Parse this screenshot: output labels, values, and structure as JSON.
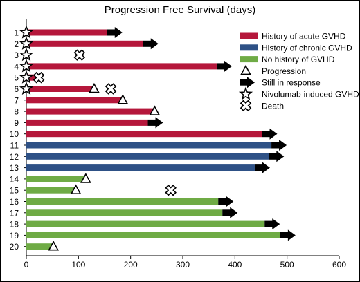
{
  "chart_data": {
    "type": "bar",
    "title": "Progression Free Survival (days)",
    "xlabel": "",
    "ylabel": "",
    "xlim": [
      0,
      600
    ],
    "x_ticks": [
      0,
      100,
      200,
      300,
      400,
      500,
      600
    ],
    "categories": [
      "1",
      "2",
      "3",
      "4",
      "5",
      "6",
      "7",
      "8",
      "9",
      "10",
      "11",
      "12",
      "13",
      "14",
      "15",
      "16",
      "17",
      "18",
      "19",
      "20"
    ],
    "groups": [
      {
        "name": "History of acute GVHD",
        "color": "#b5173b"
      },
      {
        "name": "History of chronic GVHD",
        "color": "#2e5186"
      },
      {
        "name": "No history of GVHD",
        "color": "#6fab45"
      }
    ],
    "bars": [
      {
        "patient": "1",
        "group": 0,
        "days": 155,
        "still_in_response": true,
        "progression": null,
        "death": null,
        "nivolumab_gvhd": 0
      },
      {
        "patient": "2",
        "group": 0,
        "days": 224,
        "still_in_response": true,
        "progression": null,
        "death": null,
        "nivolumab_gvhd": 0
      },
      {
        "patient": "3",
        "group": 0,
        "days": 0,
        "still_in_response": false,
        "progression": null,
        "death": 102,
        "nivolumab_gvhd": 0
      },
      {
        "patient": "4",
        "group": 0,
        "days": 365,
        "still_in_response": true,
        "progression": null,
        "death": null,
        "nivolumab_gvhd": 0
      },
      {
        "patient": "5",
        "group": 0,
        "days": 18,
        "still_in_response": false,
        "progression": null,
        "death": 24,
        "nivolumab_gvhd": 0
      },
      {
        "patient": "6",
        "group": 0,
        "days": 130,
        "still_in_response": false,
        "progression": 130,
        "death": 162,
        "nivolumab_gvhd": 0
      },
      {
        "patient": "7",
        "group": 0,
        "days": 185,
        "still_in_response": false,
        "progression": 185,
        "death": null,
        "nivolumab_gvhd": null
      },
      {
        "patient": "8",
        "group": 0,
        "days": 246,
        "still_in_response": false,
        "progression": 246,
        "death": null,
        "nivolumab_gvhd": null
      },
      {
        "patient": "9",
        "group": 0,
        "days": 233,
        "still_in_response": true,
        "progression": null,
        "death": null,
        "nivolumab_gvhd": null
      },
      {
        "patient": "10",
        "group": 0,
        "days": 452,
        "still_in_response": true,
        "progression": null,
        "death": null,
        "nivolumab_gvhd": null
      },
      {
        "patient": "11",
        "group": 1,
        "days": 470,
        "still_in_response": true,
        "progression": null,
        "death": null,
        "nivolumab_gvhd": null
      },
      {
        "patient": "12",
        "group": 1,
        "days": 465,
        "still_in_response": true,
        "progression": null,
        "death": null,
        "nivolumab_gvhd": null
      },
      {
        "patient": "13",
        "group": 1,
        "days": 438,
        "still_in_response": true,
        "progression": null,
        "death": null,
        "nivolumab_gvhd": null
      },
      {
        "patient": "14",
        "group": 2,
        "days": 114,
        "still_in_response": false,
        "progression": 114,
        "death": null,
        "nivolumab_gvhd": null
      },
      {
        "patient": "15",
        "group": 2,
        "days": 95,
        "still_in_response": false,
        "progression": 95,
        "death": 277,
        "nivolumab_gvhd": null
      },
      {
        "patient": "16",
        "group": 2,
        "days": 368,
        "still_in_response": true,
        "progression": null,
        "death": null,
        "nivolumab_gvhd": null
      },
      {
        "patient": "17",
        "group": 2,
        "days": 376,
        "still_in_response": true,
        "progression": null,
        "death": null,
        "nivolumab_gvhd": null
      },
      {
        "patient": "18",
        "group": 2,
        "days": 457,
        "still_in_response": true,
        "progression": null,
        "death": null,
        "nivolumab_gvhd": null
      },
      {
        "patient": "19",
        "group": 2,
        "days": 487,
        "still_in_response": true,
        "progression": null,
        "death": null,
        "nivolumab_gvhd": null
      },
      {
        "patient": "20",
        "group": 2,
        "days": 52,
        "still_in_response": false,
        "progression": 52,
        "death": null,
        "nivolumab_gvhd": null
      }
    ],
    "legend": {
      "placement": "top-right",
      "items": [
        {
          "label": "History of acute GVHD",
          "symbol": "bar",
          "color": "#b5173b"
        },
        {
          "label": "History of chronic GVHD",
          "symbol": "bar",
          "color": "#2e5186"
        },
        {
          "label": "No history of GVHD",
          "symbol": "bar",
          "color": "#6fab45"
        },
        {
          "label": "Progression",
          "symbol": "triangle-icon"
        },
        {
          "label": "Still in response",
          "symbol": "arrow-icon"
        },
        {
          "label": "Nivolumab-induced GVHD",
          "symbol": "star-icon"
        },
        {
          "label": "Death",
          "symbol": "cross-icon"
        }
      ]
    },
    "grid": false
  }
}
